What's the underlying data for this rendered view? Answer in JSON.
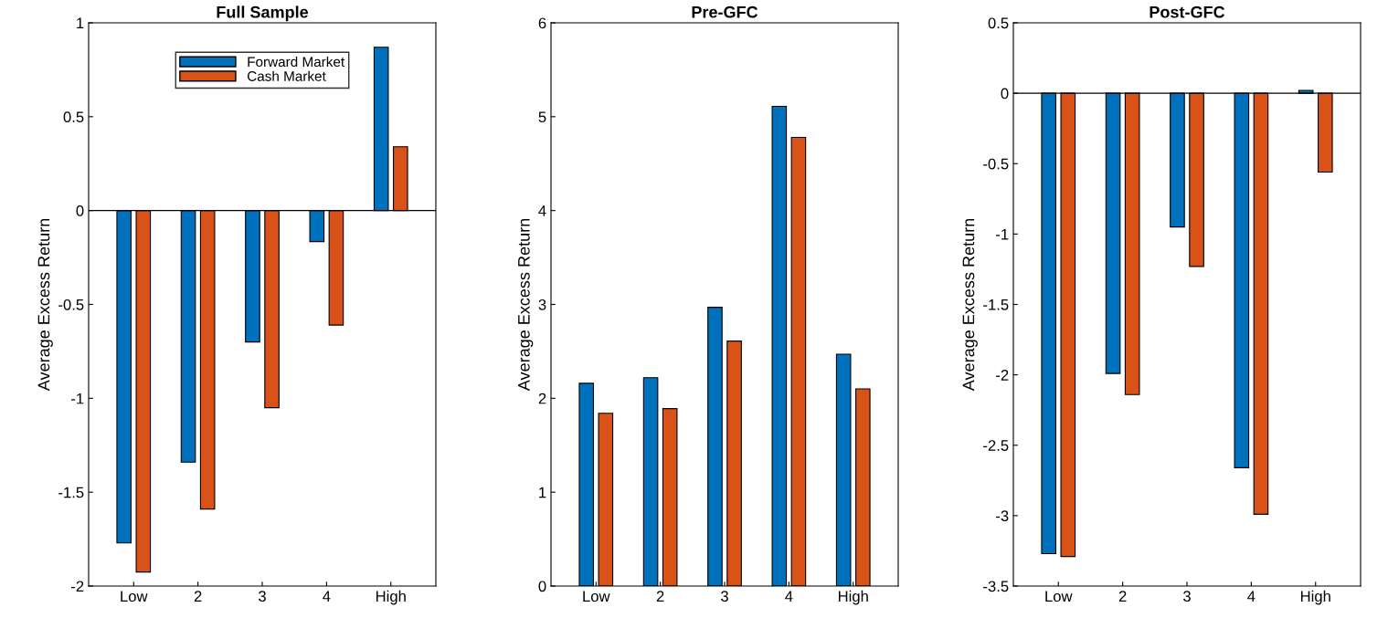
{
  "chart_data": [
    {
      "type": "bar",
      "title": "Full Sample",
      "ylabel": "Average Excess Return",
      "categories": [
        "Low",
        "2",
        "3",
        "4",
        "High"
      ],
      "ylim": [
        -2,
        1
      ],
      "yticks": [
        -2,
        -1.5,
        -1,
        -0.5,
        0,
        0.5,
        1
      ],
      "legend": "top",
      "grid": false,
      "ref_lines": [
        {
          "axis": "y",
          "value": 0,
          "color": "#000000"
        }
      ],
      "series": [
        {
          "name": "Forward Market",
          "color": "#0072bd",
          "values": [
            -1.77,
            -1.34,
            -0.7,
            -0.165,
            0.87
          ]
        },
        {
          "name": "Cash Market",
          "color": "#d95319",
          "values": [
            -1.925,
            -1.59,
            -1.05,
            -0.61,
            0.34
          ]
        }
      ]
    },
    {
      "type": "bar",
      "title": "Pre-GFC",
      "ylabel": "Average Excess Return",
      "categories": [
        "Low",
        "2",
        "3",
        "4",
        "High"
      ],
      "ylim": [
        0,
        6
      ],
      "yticks": [
        0,
        1,
        2,
        3,
        4,
        5,
        6
      ],
      "grid": false,
      "series": [
        {
          "color": "#0072bd",
          "values": [
            2.16,
            2.22,
            2.97,
            5.11,
            2.47
          ]
        },
        {
          "color": "#d95319",
          "values": [
            1.84,
            1.89,
            2.61,
            4.78,
            2.1
          ]
        }
      ]
    },
    {
      "type": "bar",
      "title": "Post-GFC",
      "ylabel": "Average Excess Return",
      "categories": [
        "Low",
        "2",
        "3",
        "4",
        "High"
      ],
      "ylim": [
        -3.5,
        0.5
      ],
      "yticks": [
        -3.5,
        -3,
        -2.5,
        -2,
        -1.5,
        -1,
        -0.5,
        0,
        0.5
      ],
      "grid": false,
      "ref_lines": [
        {
          "axis": "y",
          "value": 0,
          "color": "#000000"
        }
      ],
      "series": [
        {
          "color": "#0072bd",
          "values": [
            -3.27,
            -1.99,
            -0.95,
            -2.66,
            0.02
          ]
        },
        {
          "color": "#d95319",
          "values": [
            -3.29,
            -2.14,
            -1.23,
            -2.99,
            -0.56
          ]
        }
      ]
    }
  ]
}
